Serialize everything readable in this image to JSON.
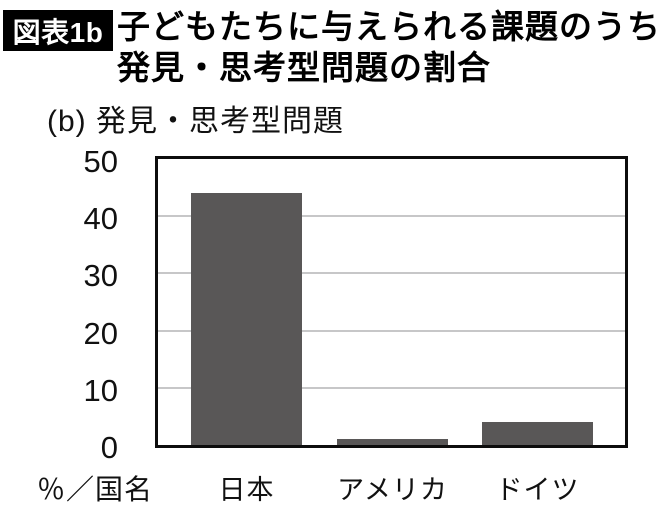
{
  "header": {
    "badge": "図表1b",
    "title_line1": "子どもたちに与えられる課題のうち",
    "title_line2": "発見・思考型問題の割合"
  },
  "chart_data": {
    "type": "bar",
    "subtitle": "(b) 発見・思考型問題",
    "categories": [
      "日本",
      "アメリカ",
      "ドイツ"
    ],
    "values": [
      44,
      1,
      4
    ],
    "xlabel": "％／国名",
    "ylabel": "",
    "ylim": [
      0,
      50
    ],
    "yticks": [
      0,
      10,
      20,
      30,
      40,
      50
    ],
    "grid": true,
    "legend": "none",
    "bar_color": "#595757",
    "grid_color": "#c7c7c8",
    "border_color": "#0d0d0d"
  }
}
